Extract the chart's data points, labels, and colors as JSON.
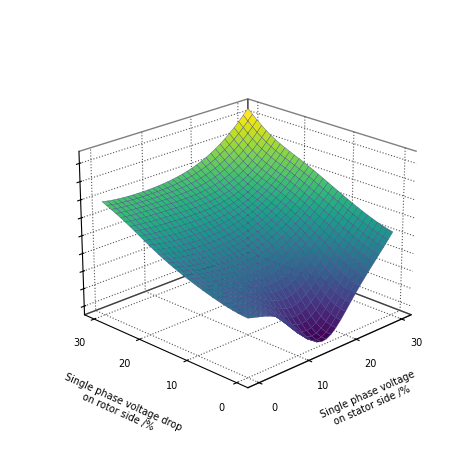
{
  "x_label": "Single phase voltage\non stator side /%",
  "y_label": "Single phase voltage drop\non rotor side /%",
  "x_ticks": [
    0,
    10,
    20,
    30
  ],
  "y_ticks": [
    0,
    10,
    20,
    30
  ],
  "colormap": "viridis",
  "figsize": [
    4.74,
    4.74
  ],
  "dpi": 100,
  "elev": 22,
  "azim": -135
}
